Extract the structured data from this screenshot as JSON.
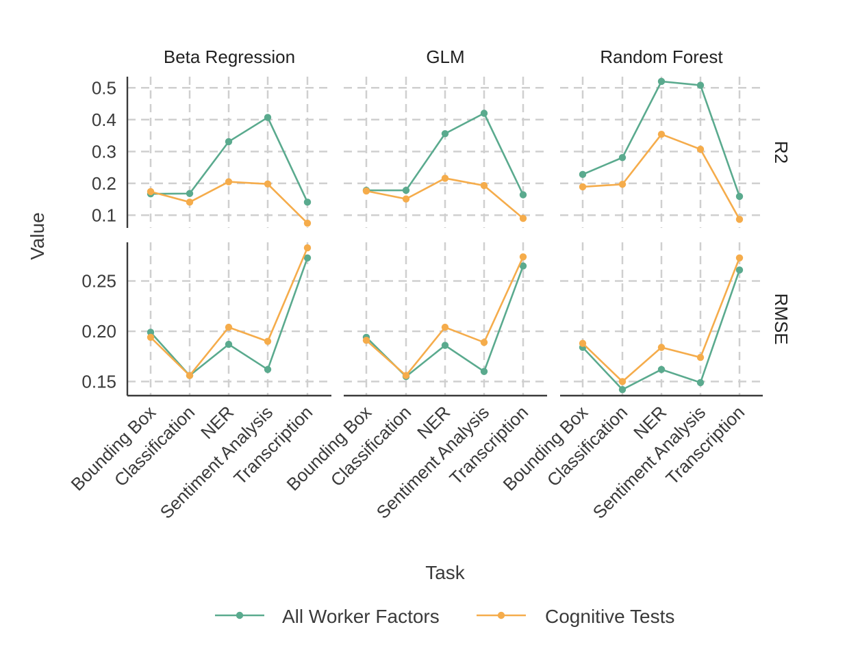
{
  "chart_data": {
    "type": "line",
    "categories": [
      "Bounding Box",
      "Classification",
      "NER",
      "Sentiment Analysis",
      "Transcription"
    ],
    "xlabel": "Task",
    "ylabel": "Value",
    "grid": true,
    "legend_position": "bottom",
    "colors": {
      "All Worker Factors": "#5aaa8e",
      "Cognitive Tests": "#f5ac4b"
    },
    "column_facets": [
      "Beta Regression",
      "GLM",
      "Random Forest"
    ],
    "row_facets": [
      {
        "name": "R2",
        "ylim": [
          0.06,
          0.535
        ],
        "ticks": [
          0.1,
          0.2,
          0.3,
          0.4,
          0.5
        ],
        "tick_labels": [
          "0.1",
          "0.2",
          "0.3",
          "0.4",
          "0.5"
        ]
      },
      {
        "name": "RMSE",
        "ylim": [
          0.136,
          0.2885
        ],
        "ticks": [
          0.15,
          0.2,
          0.25
        ],
        "tick_labels": [
          "0.15",
          "0.20",
          "0.25"
        ]
      }
    ],
    "panels": [
      {
        "model": "Beta Regression",
        "metric": "R2",
        "series": [
          {
            "name": "All Worker Factors",
            "values": [
              0.167,
              0.168,
              0.331,
              0.407,
              0.141
            ]
          },
          {
            "name": "Cognitive Tests",
            "values": [
              0.174,
              0.141,
              0.205,
              0.198,
              0.075
            ]
          }
        ]
      },
      {
        "model": "GLM",
        "metric": "R2",
        "series": [
          {
            "name": "All Worker Factors",
            "values": [
              0.178,
              0.178,
              0.356,
              0.42,
              0.164
            ]
          },
          {
            "name": "Cognitive Tests",
            "values": [
              0.176,
              0.151,
              0.216,
              0.193,
              0.09
            ]
          }
        ]
      },
      {
        "model": "Random Forest",
        "metric": "R2",
        "series": [
          {
            "name": "All Worker Factors",
            "values": [
              0.228,
              0.281,
              0.52,
              0.508,
              0.159
            ]
          },
          {
            "name": "Cognitive Tests",
            "values": [
              0.189,
              0.197,
              0.354,
              0.307,
              0.087
            ]
          }
        ]
      },
      {
        "model": "Beta Regression",
        "metric": "RMSE",
        "series": [
          {
            "name": "All Worker Factors",
            "values": [
              0.199,
              0.156,
              0.187,
              0.162,
              0.273
            ]
          },
          {
            "name": "Cognitive Tests",
            "values": [
              0.194,
              0.156,
              0.204,
              0.19,
              0.283
            ]
          }
        ]
      },
      {
        "model": "GLM",
        "metric": "RMSE",
        "series": [
          {
            "name": "All Worker Factors",
            "values": [
              0.194,
              0.155,
              0.186,
              0.16,
              0.265
            ]
          },
          {
            "name": "Cognitive Tests",
            "values": [
              0.191,
              0.156,
              0.204,
              0.189,
              0.274
            ]
          }
        ]
      },
      {
        "model": "Random Forest",
        "metric": "RMSE",
        "series": [
          {
            "name": "All Worker Factors",
            "values": [
              0.184,
              0.142,
              0.162,
              0.149,
              0.261
            ]
          },
          {
            "name": "Cognitive Tests",
            "values": [
              0.188,
              0.15,
              0.184,
              0.174,
              0.273
            ]
          }
        ]
      }
    ],
    "legend": [
      "All Worker Factors",
      "Cognitive Tests"
    ]
  }
}
